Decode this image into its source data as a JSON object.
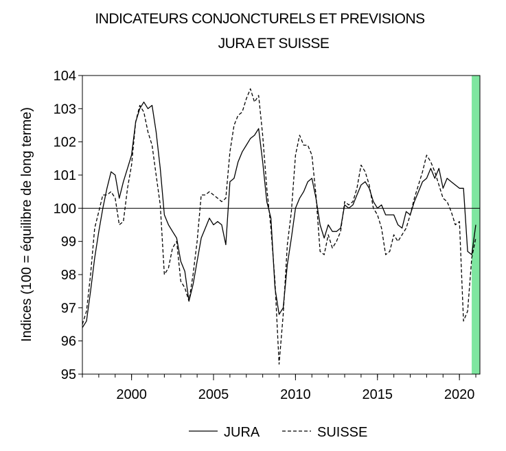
{
  "chart_data": {
    "type": "line",
    "title": "INDICATEURS CONJONCTURELS ET PREVISIONS",
    "subtitle": "JURA ET SUISSE",
    "xlabel": "",
    "ylabel": "Indices (100 = équilibre de long terme)",
    "xlim": [
      1997.0,
      2021.25
    ],
    "ylim": [
      95,
      104
    ],
    "xticks": [
      2000,
      2005,
      2010,
      2015,
      2020
    ],
    "yticks": [
      95,
      96,
      97,
      98,
      99,
      100,
      101,
      102,
      103,
      104
    ],
    "reference_line": 100,
    "forecast_shading": {
      "from": 2020.75,
      "to": 2021.25,
      "color": "#7fe6a0"
    },
    "legend_position": "bottom-center",
    "series": [
      {
        "name": "JURA",
        "style": "solid",
        "color": "#000000",
        "x": [
          1997.0,
          1997.25,
          1997.5,
          1997.75,
          1998.0,
          1998.25,
          1998.5,
          1998.75,
          1999.0,
          1999.25,
          1999.5,
          1999.75,
          2000.0,
          2000.25,
          2000.5,
          2000.75,
          2001.0,
          2001.25,
          2001.5,
          2001.75,
          2002.0,
          2002.25,
          2002.5,
          2002.75,
          2003.0,
          2003.25,
          2003.5,
          2003.75,
          2004.0,
          2004.25,
          2004.5,
          2004.75,
          2005.0,
          2005.25,
          2005.5,
          2005.75,
          2006.0,
          2006.25,
          2006.5,
          2006.75,
          2007.0,
          2007.25,
          2007.5,
          2007.75,
          2008.0,
          2008.25,
          2008.5,
          2008.75,
          2009.0,
          2009.25,
          2009.5,
          2009.75,
          2010.0,
          2010.25,
          2010.5,
          2010.75,
          2011.0,
          2011.25,
          2011.5,
          2011.75,
          2012.0,
          2012.25,
          2012.5,
          2012.75,
          2013.0,
          2013.25,
          2013.5,
          2013.75,
          2014.0,
          2014.25,
          2014.5,
          2014.75,
          2015.0,
          2015.25,
          2015.5,
          2015.75,
          2016.0,
          2016.25,
          2016.5,
          2016.75,
          2017.0,
          2017.25,
          2017.5,
          2017.75,
          2018.0,
          2018.25,
          2018.5,
          2018.75,
          2019.0,
          2019.25,
          2019.5,
          2019.75,
          2020.0,
          2020.25,
          2020.5,
          2020.75,
          2021.0
        ],
        "values": [
          96.4,
          96.6,
          97.5,
          98.5,
          99.3,
          100.0,
          100.6,
          101.1,
          101.0,
          100.3,
          100.8,
          101.2,
          101.6,
          102.6,
          103.0,
          103.2,
          103.0,
          103.1,
          102.3,
          101.2,
          99.8,
          99.5,
          99.3,
          99.1,
          98.4,
          98.1,
          97.2,
          97.7,
          98.4,
          99.1,
          99.4,
          99.7,
          99.5,
          99.6,
          99.5,
          98.9,
          100.8,
          100.9,
          101.4,
          101.7,
          101.9,
          102.1,
          102.2,
          102.4,
          101.4,
          100.2,
          99.7,
          97.6,
          96.8,
          97.0,
          98.3,
          99.1,
          100.0,
          100.3,
          100.5,
          100.8,
          100.9,
          100.3,
          99.5,
          99.1,
          99.5,
          99.3,
          99.3,
          99.4,
          100.1,
          100.0,
          100.1,
          100.4,
          100.7,
          100.8,
          100.6,
          100.2,
          100.0,
          100.1,
          99.8,
          99.8,
          99.8,
          99.5,
          99.4,
          99.9,
          99.8,
          100.2,
          100.5,
          100.8,
          100.9,
          101.2,
          100.9,
          101.2,
          100.6,
          100.9,
          100.8,
          100.7,
          100.6,
          100.6,
          98.7,
          98.6,
          99.5
        ]
      },
      {
        "name": "SUISSE",
        "style": "dashed",
        "color": "#000000",
        "x": [
          1997.0,
          1997.25,
          1997.5,
          1997.75,
          1998.0,
          1998.25,
          1998.5,
          1998.75,
          1999.0,
          1999.25,
          1999.5,
          1999.75,
          2000.0,
          2000.25,
          2000.5,
          2000.75,
          2001.0,
          2001.25,
          2001.5,
          2001.75,
          2002.0,
          2002.25,
          2002.5,
          2002.75,
          2003.0,
          2003.25,
          2003.5,
          2003.75,
          2004.0,
          2004.25,
          2004.5,
          2004.75,
          2005.0,
          2005.25,
          2005.5,
          2005.75,
          2006.0,
          2006.25,
          2006.5,
          2006.75,
          2007.0,
          2007.25,
          2007.5,
          2007.75,
          2008.0,
          2008.25,
          2008.5,
          2008.75,
          2009.0,
          2009.25,
          2009.5,
          2009.75,
          2010.0,
          2010.25,
          2010.5,
          2010.75,
          2011.0,
          2011.25,
          2011.5,
          2011.75,
          2012.0,
          2012.25,
          2012.5,
          2012.75,
          2013.0,
          2013.25,
          2013.5,
          2013.75,
          2014.0,
          2014.25,
          2014.5,
          2014.75,
          2015.0,
          2015.25,
          2015.5,
          2015.75,
          2016.0,
          2016.25,
          2016.5,
          2016.75,
          2017.0,
          2017.25,
          2017.5,
          2017.75,
          2018.0,
          2018.25,
          2018.5,
          2018.75,
          2019.0,
          2019.25,
          2019.5,
          2019.75,
          2020.0,
          2020.25,
          2020.5,
          2020.75,
          2021.0
        ],
        "values": [
          96.5,
          96.9,
          98.0,
          99.4,
          99.9,
          100.4,
          100.4,
          100.5,
          100.3,
          99.5,
          99.6,
          100.6,
          101.3,
          102.6,
          103.1,
          102.9,
          102.3,
          101.9,
          101.0,
          100.1,
          98.0,
          98.2,
          98.8,
          99.0,
          97.8,
          97.6,
          97.2,
          98.0,
          99.0,
          100.4,
          100.4,
          100.5,
          100.4,
          100.3,
          100.2,
          100.3,
          101.7,
          102.5,
          102.8,
          102.9,
          103.3,
          103.6,
          103.2,
          103.4,
          102.2,
          100.6,
          99.4,
          97.8,
          95.3,
          96.8,
          98.9,
          99.9,
          101.6,
          102.2,
          101.9,
          101.9,
          101.6,
          100.4,
          98.7,
          98.6,
          99.2,
          98.8,
          99.0,
          99.3,
          100.2,
          100.1,
          100.2,
          100.6,
          101.3,
          101.1,
          100.7,
          100.0,
          99.8,
          99.4,
          98.6,
          98.7,
          99.2,
          99.0,
          99.2,
          99.4,
          99.8,
          100.3,
          100.7,
          101.1,
          101.6,
          101.4,
          101.1,
          100.7,
          100.3,
          100.2,
          99.9,
          99.5,
          99.6,
          96.6,
          96.9,
          98.5,
          99.1
        ]
      }
    ]
  }
}
